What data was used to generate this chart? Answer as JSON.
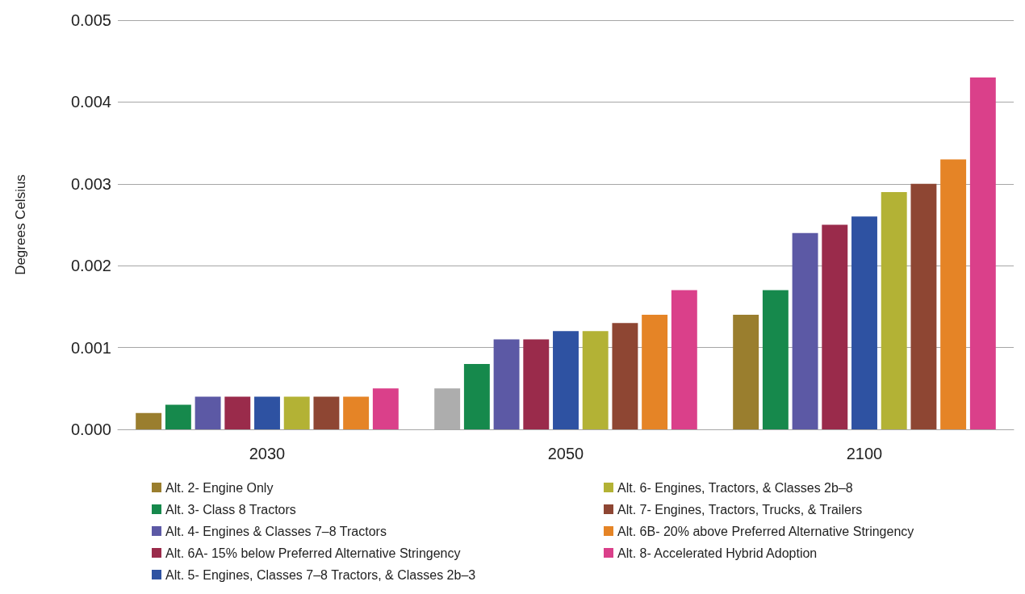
{
  "chart_data": {
    "type": "bar",
    "ylabel": "Degrees Celsius",
    "categories": [
      "2030",
      "2050",
      "2100"
    ],
    "ylim": [
      0,
      0.005
    ],
    "yticks": [
      {
        "value": 0,
        "label": "0.000"
      },
      {
        "value": 0.001,
        "label": "0.001"
      },
      {
        "value": 0.002,
        "label": "0.002"
      },
      {
        "value": 0.003,
        "label": "0.003"
      },
      {
        "value": 0.004,
        "label": "0.004"
      },
      {
        "value": 0.005,
        "label": "0.005"
      }
    ],
    "grid": "y",
    "legend": "bottom",
    "series": [
      {
        "name": "Alt. 2- Engine Only",
        "color": "#9a7e2e",
        "colors": [
          "#9a7e2e",
          "#adadad",
          "#9a7e2e"
        ],
        "values": [
          0.0002,
          0.0005,
          0.0014
        ]
      },
      {
        "name": "Alt. 3- Class 8 Tractors",
        "color": "#16894c",
        "values": [
          0.0003,
          0.0008,
          0.0017
        ]
      },
      {
        "name": "Alt. 4- Engines & Classes 7–8 Tractors",
        "color": "#5c59a5",
        "values": [
          0.0004,
          0.0011,
          0.0024
        ]
      },
      {
        "name": "Alt. 6A- 15% below Preferred Alternative Stringency",
        "color": "#9a2b4b",
        "values": [
          0.0004,
          0.0011,
          0.0025
        ]
      },
      {
        "name": "Alt. 5- Engines, Classes 7–8 Tractors, & Classes 2b–3",
        "color": "#2e52a2",
        "values": [
          0.0004,
          0.0012,
          0.0026
        ]
      },
      {
        "name": "Alt. 6- Engines, Tractors, & Classes 2b–8",
        "color": "#b3b235",
        "values": [
          0.0004,
          0.0012,
          0.0029
        ]
      },
      {
        "name": "Alt. 7- Engines, Tractors, Trucks, & Trailers",
        "color": "#8e4633",
        "values": [
          0.0004,
          0.0013,
          0.003
        ]
      },
      {
        "name": "Alt. 6B- 20% above Preferred Alternative Stringency",
        "color": "#e58426",
        "values": [
          0.0004,
          0.0014,
          0.0033
        ]
      },
      {
        "name": "Alt. 8- Accelerated Hybrid Adoption",
        "color": "#da408a",
        "values": [
          0.0005,
          0.0017,
          0.0043
        ]
      }
    ]
  }
}
